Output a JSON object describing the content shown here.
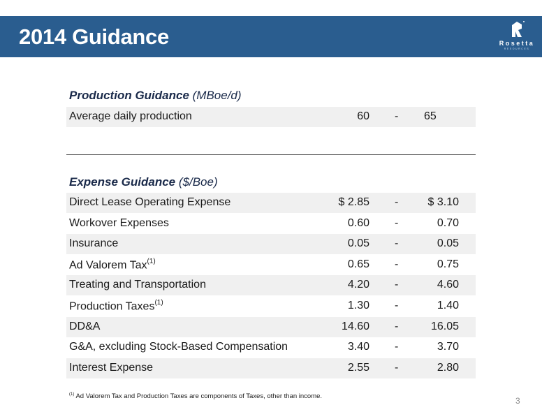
{
  "header": {
    "title": "2014 Guidance",
    "brand_name": "Rosetta",
    "brand_sub": "RESOURCES"
  },
  "production": {
    "title_bold": "Production Guidance",
    "title_unit": "(MBoe/d)",
    "row": {
      "label": "Average daily production",
      "low": "60",
      "dash": "-",
      "high": "65"
    }
  },
  "expense": {
    "title_bold": "Expense Guidance",
    "title_unit": "($/Boe)",
    "rows": [
      {
        "label": "Direct Lease Operating Expense",
        "sup": "",
        "low": "$  2.85",
        "dash": "-",
        "high": "$  3.10"
      },
      {
        "label": "Workover Expenses",
        "sup": "",
        "low": "0.60",
        "dash": "-",
        "high": "0.70"
      },
      {
        "label": "Insurance",
        "sup": "",
        "low": "0.05",
        "dash": "-",
        "high": "0.05"
      },
      {
        "label": "Ad Valorem Tax",
        "sup": "(1)",
        "low": "0.65",
        "dash": "-",
        "high": "0.75"
      },
      {
        "label": "Treating and Transportation",
        "sup": "",
        "low": "4.20",
        "dash": "-",
        "high": "4.60"
      },
      {
        "label": "Production Taxes",
        "sup": "(1)",
        "low": "1.30",
        "dash": "-",
        "high": "1.40"
      },
      {
        "label": "DD&A",
        "sup": "",
        "low": "14.60",
        "dash": "-",
        "high": "16.05"
      },
      {
        "label": "G&A, excluding Stock-Based Compensation",
        "sup": "",
        "low": "3.40",
        "dash": "-",
        "high": "3.70"
      },
      {
        "label": "Interest Expense",
        "sup": "",
        "low": "2.55",
        "dash": "-",
        "high": "2.80"
      }
    ]
  },
  "footnote": {
    "marker": "(1)",
    "text": "Ad Valorem Tax and Production Taxes are components of Taxes, other than income."
  },
  "page_number": "3",
  "colors": {
    "header_bg": "#2a5d8f",
    "row_shade": "#f0f0f0"
  }
}
